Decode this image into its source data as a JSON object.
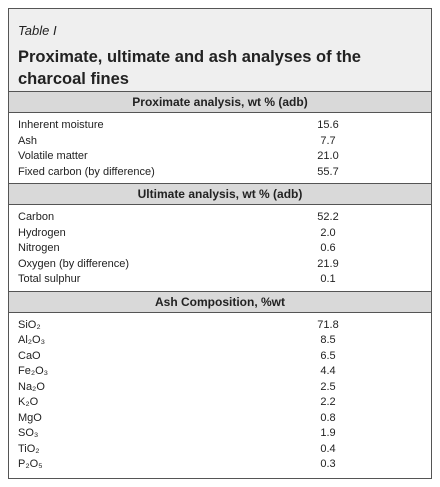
{
  "header": {
    "label": "Table I",
    "title": "Proximate, ultimate and ash analyses of the charcoal fines"
  },
  "sections": [
    {
      "title": "Proximate analysis, wt % (adb)",
      "rows": [
        [
          "Inherent moisture",
          "15.6"
        ],
        [
          "Ash",
          "7.7"
        ],
        [
          "Volatile matter",
          "21.0"
        ],
        [
          "Fixed carbon (by difference)",
          "55.7"
        ]
      ]
    },
    {
      "title": "Ultimate analysis, wt % (adb)",
      "rows": [
        [
          "Carbon",
          "52.2"
        ],
        [
          "Hydrogen",
          "2.0"
        ],
        [
          "Nitrogen",
          "0.6"
        ],
        [
          "Oxygen (by difference)",
          "21.9"
        ],
        [
          "Total sulphur",
          "0.1"
        ]
      ]
    },
    {
      "title": "Ash Composition, %wt",
      "rows": [
        [
          "SiO₂",
          "71.8"
        ],
        [
          "Al₂O₃",
          "8.5"
        ],
        [
          "CaO",
          "6.5"
        ],
        [
          "Fe₂O₃",
          "4.4"
        ],
        [
          "Na₂O",
          "2.5"
        ],
        [
          "K₂O",
          "2.2"
        ],
        [
          "MgO",
          "0.8"
        ],
        [
          "SO₃",
          "1.9"
        ],
        [
          "TiO₂",
          "0.4"
        ],
        [
          "P₂O₅",
          "0.3"
        ]
      ]
    }
  ]
}
